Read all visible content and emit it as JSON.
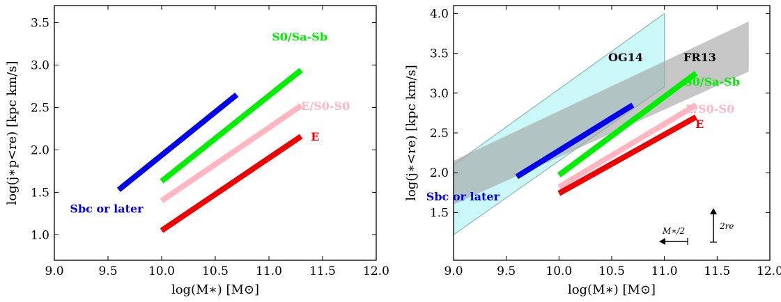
{
  "chart_data": [
    {
      "type": "line",
      "xlabel": "log(M∗) [M⊙]",
      "ylabel": "log(j∗p<re) [kpc km/s]",
      "xlim": [
        9.0,
        12.0
      ],
      "ylim": [
        0.7,
        3.7
      ],
      "xticks": [
        "9.0",
        "9.5",
        "10.0",
        "10.5",
        "11.0",
        "11.5",
        "12.0"
      ],
      "yticks": [
        "1.0",
        "1.5",
        "2.0",
        "2.5",
        "3.0",
        "3.5"
      ],
      "series": [
        {
          "name": "Sbc or later",
          "color": "#0000ee",
          "x": [
            9.6,
            10.7
          ],
          "y": [
            1.53,
            2.65
          ]
        },
        {
          "name": "S0/Sa-Sb",
          "color": "#00ee00",
          "x": [
            10.0,
            11.3
          ],
          "y": [
            1.63,
            2.94
          ]
        },
        {
          "name": "E/S0-S0",
          "color": "#ffb6c1",
          "x": [
            10.0,
            11.3
          ],
          "y": [
            1.4,
            2.52
          ]
        },
        {
          "name": "E",
          "color": "#ee0000",
          "x": [
            10.0,
            11.3
          ],
          "y": [
            1.05,
            2.16
          ]
        }
      ]
    },
    {
      "type": "line",
      "xlabel": "log(M∗) [M⊙]",
      "ylabel": "log(j∗<re) [kpc km/s]",
      "xlim": [
        9.0,
        12.0
      ],
      "ylim": [
        0.9,
        4.1
      ],
      "xticks": [
        "9.0",
        "9.5",
        "10.0",
        "10.5",
        "11.0",
        "11.5",
        "12.0"
      ],
      "yticks": [
        "1.5",
        "2.0",
        "2.5",
        "3.0",
        "3.5",
        "4.0"
      ],
      "series": [
        {
          "name": "Sbc or later",
          "color": "#0000ee",
          "x": [
            9.6,
            10.7
          ],
          "y": [
            1.95,
            2.85
          ]
        },
        {
          "name": "S0/Sa-Sb",
          "color": "#00ee00",
          "x": [
            10.0,
            11.3
          ],
          "y": [
            1.97,
            3.25
          ]
        },
        {
          "name": "E/S0-S0",
          "color": "#ffb6c1",
          "x": [
            10.0,
            11.3
          ],
          "y": [
            1.82,
            2.85
          ]
        },
        {
          "name": "E",
          "color": "#ee0000",
          "x": [
            10.0,
            11.3
          ],
          "y": [
            1.74,
            2.7
          ]
        }
      ],
      "bands": [
        {
          "name": "OG14",
          "color": "#aaf2f2",
          "x": [
            9.0,
            11.0,
            11.0,
            9.0
          ],
          "y": [
            1.22,
            3.08,
            4.0,
            2.1
          ]
        },
        {
          "name": "FR13",
          "color": "#a0a0a0",
          "x": [
            9.0,
            11.8,
            11.8,
            9.0
          ],
          "y": [
            1.6,
            3.27,
            3.9,
            2.15
          ]
        }
      ],
      "annotations": [
        {
          "text": "M∗/2"
        },
        {
          "text": "2re"
        }
      ]
    }
  ]
}
